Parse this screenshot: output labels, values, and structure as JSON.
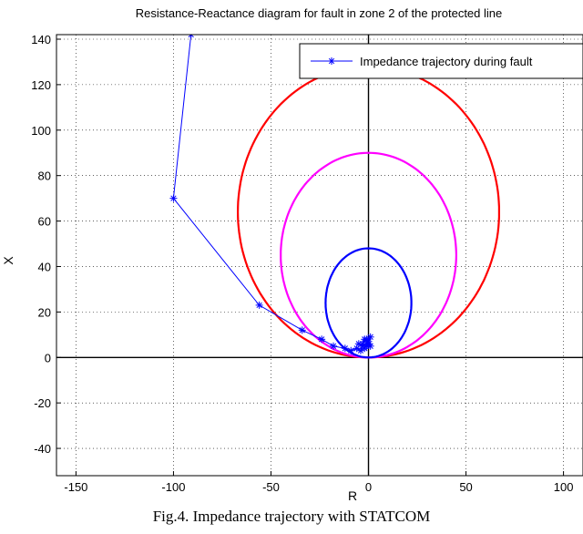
{
  "chart_data": {
    "type": "line",
    "title": "Resistance-Reactance diagram for fault in zone 2 of the protected line",
    "xlabel": "R",
    "ylabel": "X",
    "xlim": [
      -160,
      110
    ],
    "ylim": [
      -52,
      142
    ],
    "grid": true,
    "x_ticks": [
      -150,
      -100,
      -50,
      0,
      50,
      100
    ],
    "x_tick_labels": [
      "-150",
      "-100",
      "-50",
      "0",
      "50",
      "100"
    ],
    "y_ticks": [
      -40,
      -20,
      0,
      20,
      40,
      60,
      80,
      100,
      120,
      140
    ],
    "y_tick_labels": [
      "-40",
      "-20",
      "0",
      "20",
      "40",
      "60",
      "80",
      "100",
      "120",
      "140"
    ],
    "legend": {
      "placement": "top-right",
      "entries": [
        "Impedance trajectory during fault"
      ]
    },
    "series": [
      {
        "name": "Impedance trajectory during fault",
        "color": "#0000ff",
        "marker": "asterisk",
        "points": [
          [
            -91,
            142
          ],
          [
            -100,
            70
          ],
          [
            -56,
            23
          ],
          [
            -34,
            12
          ],
          [
            -24,
            8
          ],
          [
            -18,
            5
          ],
          [
            -12,
            4
          ],
          [
            -9,
            3
          ],
          [
            -6,
            4
          ],
          [
            -4,
            3
          ],
          [
            -3,
            6
          ],
          [
            -2,
            8
          ],
          [
            -1,
            5
          ],
          [
            0,
            7
          ],
          [
            1,
            9
          ],
          [
            -2,
            4
          ],
          [
            0,
            6
          ],
          [
            -1,
            8
          ],
          [
            1,
            5
          ],
          [
            -3,
            5
          ],
          [
            -5,
            6
          ]
        ]
      }
    ],
    "circles": [
      {
        "color": "#ff0000",
        "center": [
          0,
          64
        ],
        "radius_x": 67,
        "radius_y": 64
      },
      {
        "color": "#ff00ff",
        "center": [
          0,
          45
        ],
        "radius_x": 45,
        "radius_y": 45
      },
      {
        "color": "#0000ff",
        "center": [
          0,
          24
        ],
        "radius_x": 22,
        "radius_y": 24
      }
    ]
  },
  "caption": "Fig.4. Impedance trajectory with STATCOM"
}
